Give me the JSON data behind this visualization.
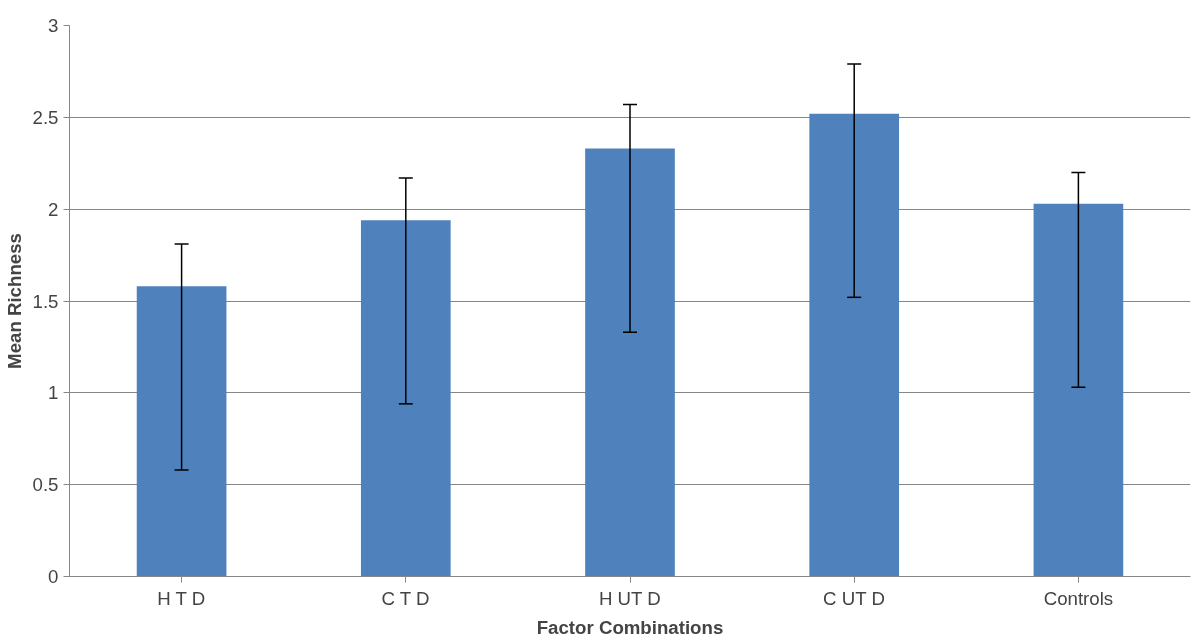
{
  "chart_data": {
    "type": "bar",
    "xlabel": "Factor Combinations",
    "ylabel": "Mean Richness",
    "categories": [
      "H T D",
      "C T D",
      "H UT D",
      "C UT D",
      "Controls"
    ],
    "values": [
      1.58,
      1.94,
      2.33,
      2.52,
      2.03
    ],
    "errors": [
      [
        0.58,
        1.81
      ],
      [
        0.94,
        2.17
      ],
      [
        1.33,
        2.57
      ],
      [
        1.52,
        2.79
      ],
      [
        1.03,
        2.2
      ]
    ],
    "color": "#4f81bd",
    "ylim": [
      0,
      3
    ],
    "yticks": [
      0,
      0.5,
      1,
      1.5,
      2,
      2.5,
      3
    ],
    "grid": "y"
  }
}
